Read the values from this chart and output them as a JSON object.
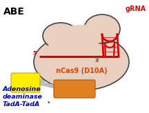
{
  "title": "ABE",
  "grna_label": "gRNA",
  "cas9_label": "nCas9 (D10A)",
  "adenosine_label_line1": "Adenosine",
  "adenosine_label_line2": "deaminase",
  "adenosine_label_line3": "TadA-TadA",
  "adenosine_label_star": "*",
  "bg_color": "#ffffff",
  "cas9_body_color": "#e8cfc0",
  "cas9_edge_color": "#444444",
  "grna_color": "#dd0000",
  "yellow_box_color": "#ffee00",
  "yellow_edge_color": "#ccaa00",
  "orange_box_color": "#e08020",
  "orange_edge_color": "#b05010",
  "linker_color": "#bbbbbb",
  "title_color": "#000000",
  "grna_label_color": "#dd0000",
  "cas9_label_color": "#dd4400",
  "adenosine_label_color": "#0000cc",
  "title_fontsize": 10,
  "label_fontsize": 6.5,
  "cas9_label_fontsize": 7
}
